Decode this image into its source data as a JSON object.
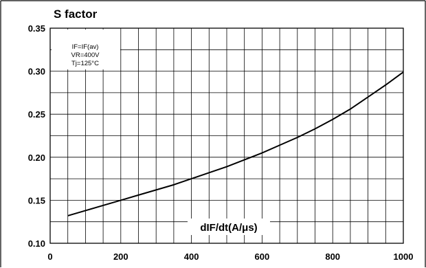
{
  "chart_data": {
    "type": "line",
    "ylabel": "S factor",
    "xlabel": "dIF/dt(A/μs)",
    "conditions": [
      "IF=IF(av)",
      "VR=400V",
      "Tj=125°C"
    ],
    "xlim": [
      0,
      1000
    ],
    "ylim": [
      0.1,
      0.35
    ],
    "x_ticks": [
      "0",
      "200",
      "400",
      "600",
      "800",
      "1000"
    ],
    "y_ticks": [
      "0.10",
      "0.15",
      "0.20",
      "0.25",
      "0.30",
      "0.35"
    ],
    "grid": true,
    "series": [
      {
        "x": [
          50,
          100,
          150,
          200,
          250,
          300,
          350,
          400,
          450,
          500,
          550,
          600,
          650,
          700,
          750,
          800,
          850,
          900,
          950,
          1000
        ],
        "y": [
          0.132,
          0.138,
          0.144,
          0.15,
          0.156,
          0.162,
          0.168,
          0.175,
          0.182,
          0.189,
          0.197,
          0.205,
          0.214,
          0.223,
          0.233,
          0.244,
          0.256,
          0.27,
          0.284,
          0.299
        ]
      }
    ]
  }
}
